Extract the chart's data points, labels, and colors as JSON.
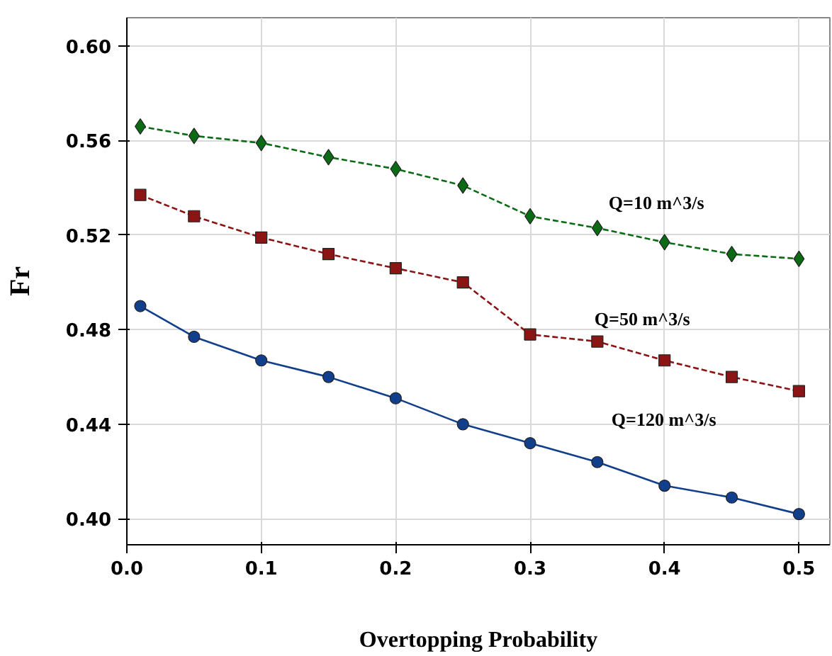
{
  "chart_data": {
    "type": "line",
    "xlabel": "Overtopping Probability",
    "ylabel": "Fr",
    "x": [
      0.01,
      0.05,
      0.1,
      0.15,
      0.2,
      0.25,
      0.3,
      0.35,
      0.4,
      0.45,
      0.5
    ],
    "series": [
      {
        "name": "Q=10 m^3/s",
        "color": "#0a6b14",
        "marker": "diamond",
        "line_style": "dashed",
        "values": [
          0.566,
          0.562,
          0.559,
          0.553,
          0.548,
          0.541,
          0.528,
          0.523,
          0.517,
          0.512,
          0.51
        ]
      },
      {
        "name": "Q=50 m^3/s",
        "color": "#8b1414",
        "marker": "square",
        "line_style": "dashed",
        "values": [
          0.537,
          0.528,
          0.519,
          0.512,
          0.506,
          0.5,
          0.478,
          0.475,
          0.467,
          0.46,
          0.454
        ]
      },
      {
        "name": "Q=120 m^3/s",
        "color": "#123f8c",
        "marker": "circle",
        "line_style": "solid",
        "values": [
          0.49,
          0.477,
          0.467,
          0.46,
          0.451,
          0.44,
          0.432,
          0.424,
          0.414,
          0.409,
          0.402
        ]
      }
    ],
    "xlim": [
      0,
      0.523
    ],
    "ylim": [
      0.389,
      0.612
    ],
    "xticks": [
      {
        "value": 0,
        "label": "0.0"
      },
      0.1,
      0.2,
      0.3,
      0.4,
      0.5
    ],
    "yticks": [
      {
        "value": 0.4,
        "label": "0.40"
      },
      0.44,
      0.48,
      {
        "value": 0.52,
        "label": "0.52"
      },
      0.56,
      {
        "value": 0.6,
        "label": "0.60"
      }
    ],
    "grid": true
  }
}
